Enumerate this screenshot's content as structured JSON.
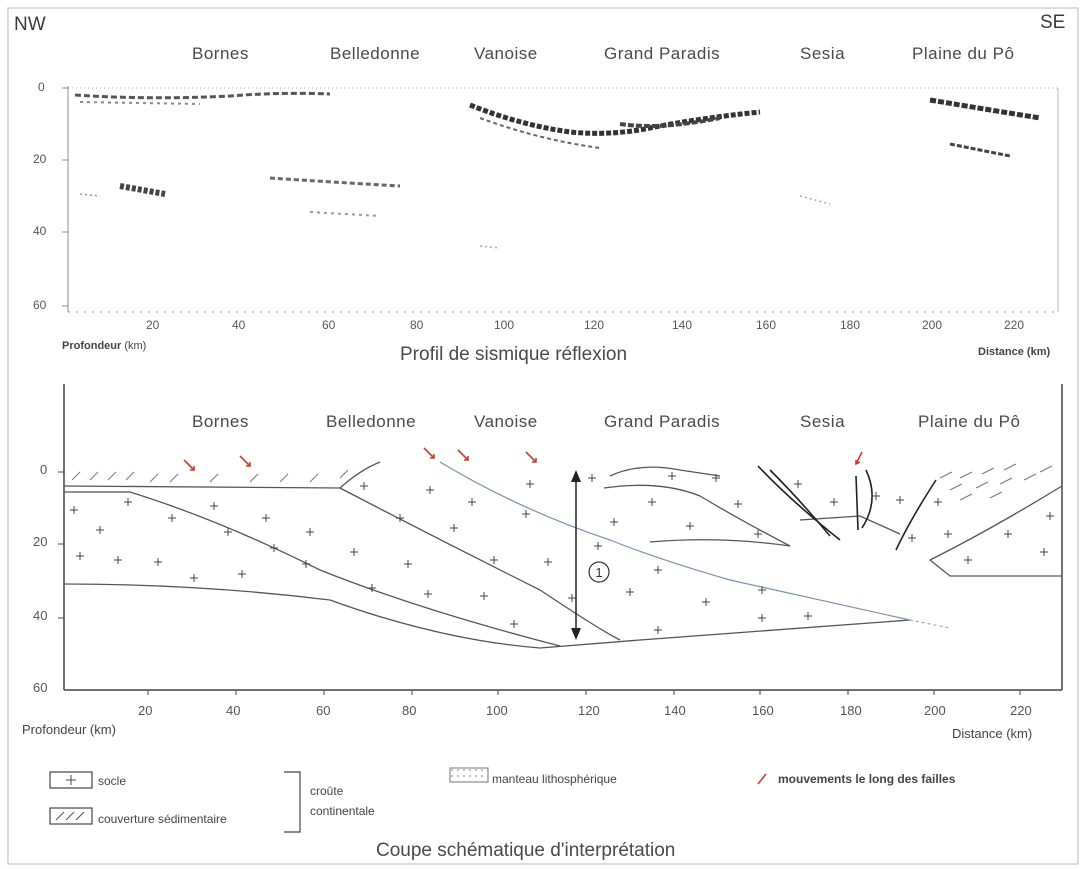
{
  "orientation": {
    "left": "NW",
    "right": "SE"
  },
  "regions": [
    "Bornes",
    "Belledonne",
    "Vanoise",
    "Grand Paradis",
    "Sesia",
    "Plaine du Pô"
  ],
  "top_panel": {
    "title": "Profil de sismique réflexion",
    "y_ticks": [
      "0",
      "20",
      "40",
      "60"
    ],
    "x_ticks": [
      "20",
      "40",
      "60",
      "80",
      "100",
      "120",
      "140",
      "160",
      "180",
      "200",
      "220"
    ],
    "y_label": "Profondeur",
    "y_unit": "(km)",
    "x_label": "Distance (km)"
  },
  "bottom_panel": {
    "title": "Coupe schématique d'interprétation",
    "y_ticks": [
      "0",
      "20",
      "40",
      "60"
    ],
    "x_ticks": [
      "20",
      "40",
      "60",
      "80",
      "100",
      "120",
      "140",
      "160",
      "180",
      "200",
      "220"
    ],
    "y_label": "Profondeur (km)",
    "x_label": "Distance (km)",
    "marker": "①"
  },
  "legend": {
    "socle": "socle",
    "couverture": "couverture sédimentaire",
    "croute_line1": "croûte",
    "croute_line2": "continentale",
    "manteau": "manteau lithosphérique",
    "failles": "mouvements le long des failles"
  },
  "colors": {
    "fault_arrow": "#d23a2a",
    "line": "#555555"
  }
}
